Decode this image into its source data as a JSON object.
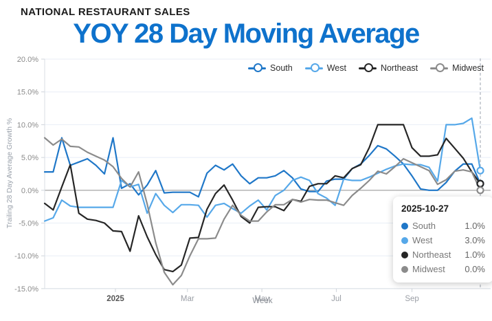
{
  "header": {
    "kicker": "NATIONAL RESTAURANT SALES",
    "title": "YOY 28 Day Moving Average"
  },
  "chart_data": {
    "type": "line",
    "title": "YOY 28 Day Moving Average",
    "xlabel": "Week",
    "ylabel": "Trailing 28 Day Average Growth %",
    "ylim": [
      -15,
      20
    ],
    "yticks": [
      20,
      15,
      10,
      5,
      0,
      -5,
      -10,
      -15
    ],
    "ytick_format": "percent_1dp",
    "grid": true,
    "legend_position": "top-right",
    "x_interval": "weekly",
    "x_start_date": "2024-11-04",
    "x_end_date": "2025-10-27",
    "xticks": [
      {
        "label": "2025",
        "date": "2025-01-01",
        "emphasis": true
      },
      {
        "label": "Mar",
        "date": "2025-03-01",
        "emphasis": false
      },
      {
        "label": "May",
        "date": "2025-05-01",
        "emphasis": false
      },
      {
        "label": "Jul",
        "date": "2025-07-01",
        "emphasis": false
      },
      {
        "label": "Sep",
        "date": "2025-09-01",
        "emphasis": false
      }
    ],
    "hover_date": "2025-10-27",
    "series": [
      {
        "name": "South",
        "color": "#1f77c8",
        "values": [
          2.8,
          2.8,
          8.0,
          3.8,
          4.3,
          4.8,
          3.8,
          2.5,
          8.0,
          0.3,
          1.0,
          -0.7,
          0.8,
          3.0,
          -0.4,
          -0.3,
          -0.3,
          -0.3,
          -1.0,
          2.6,
          3.8,
          3.1,
          4.0,
          2.2,
          1.0,
          1.9,
          1.9,
          2.2,
          3.0,
          1.9,
          0.2,
          -0.2,
          -0.2,
          1.4,
          1.7,
          1.7,
          3.3,
          4.0,
          5.3,
          6.8,
          6.3,
          5.2,
          4.0,
          2.2,
          0.2,
          0.0,
          0.0,
          1.2,
          2.9,
          4.0,
          4.0,
          1.0
        ]
      },
      {
        "name": "West",
        "color": "#56a8e9",
        "values": [
          -4.7,
          -4.2,
          -1.5,
          -2.4,
          -2.6,
          -2.6,
          -2.6,
          -2.6,
          -2.6,
          1.5,
          0.5,
          0.9,
          -3.5,
          -0.5,
          -2.3,
          -3.4,
          -2.2,
          -2.2,
          -2.3,
          -4.1,
          -2.3,
          -2.0,
          -2.8,
          -3.5,
          -2.4,
          -1.5,
          -3.0,
          -0.8,
          0.0,
          1.5,
          2.0,
          1.5,
          -0.5,
          -1.2,
          -2.3,
          1.7,
          1.5,
          1.5,
          2.0,
          2.6,
          3.2,
          3.7,
          4.0,
          3.9,
          3.9,
          3.5,
          1.4,
          10.0,
          10.0,
          10.2,
          11.0,
          3.0
        ]
      },
      {
        "name": "Northeast",
        "color": "#262626",
        "values": [
          -2.0,
          -3.0,
          0.5,
          3.9,
          -3.5,
          -4.4,
          -4.6,
          -5.0,
          -6.2,
          -6.3,
          -9.3,
          -3.9,
          -7.1,
          -9.8,
          -12.1,
          -12.4,
          -11.4,
          -7.3,
          -7.2,
          -2.9,
          -0.5,
          0.8,
          -1.5,
          -4.0,
          -5.0,
          -2.6,
          -2.5,
          -2.5,
          -3.1,
          -1.4,
          -1.7,
          0.6,
          1.0,
          1.0,
          2.2,
          1.9,
          3.3,
          3.9,
          6.5,
          10.0,
          10.0,
          10.0,
          10.0,
          6.5,
          5.2,
          5.2,
          5.4,
          7.9,
          6.4,
          4.9,
          2.8,
          1.0
        ]
      },
      {
        "name": "Midwest",
        "color": "#8b8b8b",
        "values": [
          8.0,
          6.9,
          7.8,
          6.7,
          6.6,
          5.8,
          5.2,
          4.6,
          3.6,
          1.8,
          0.5,
          2.8,
          -2.1,
          -8.0,
          -12.5,
          -14.4,
          -13.0,
          -10.0,
          -7.4,
          -7.4,
          -7.3,
          -4.4,
          -2.3,
          -3.8,
          -4.7,
          -4.7,
          -3.3,
          -2.2,
          -2.2,
          -1.4,
          -1.8,
          -1.4,
          -1.5,
          -1.5,
          -1.9,
          -2.3,
          -0.8,
          0.3,
          1.5,
          2.9,
          2.5,
          3.6,
          4.8,
          4.2,
          3.6,
          3.0,
          0.9,
          1.6,
          2.9,
          3.1,
          2.8,
          0.0
        ]
      }
    ]
  },
  "tooltip": {
    "date": "2025-10-27",
    "rows": [
      {
        "name": "South",
        "value": "1.0%",
        "color": "#1f77c8"
      },
      {
        "name": "West",
        "value": "3.0%",
        "color": "#56a8e9"
      },
      {
        "name": "Northeast",
        "value": "1.0%",
        "color": "#262626"
      },
      {
        "name": "Midwest",
        "value": "0.0%",
        "color": "#8b8b8b"
      }
    ]
  },
  "colors": {
    "title_accent": "#0e72cc",
    "gridline": "#e8eef6",
    "zero_line": "#adadad",
    "axis_line": "#d8dde3",
    "tick_text": "#8a8a8a",
    "hover_line": "#9aa1ad"
  }
}
